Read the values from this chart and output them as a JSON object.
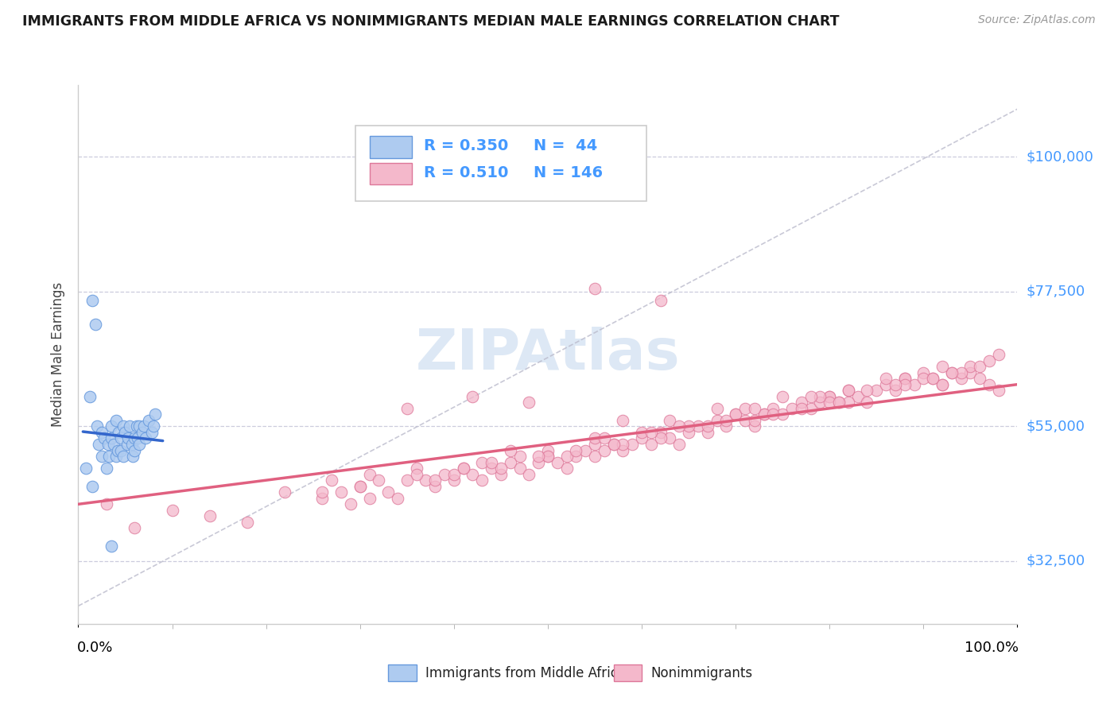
{
  "title": "IMMIGRANTS FROM MIDDLE AFRICA VS NONIMMIGRANTS MEDIAN MALE EARNINGS CORRELATION CHART",
  "source": "Source: ZipAtlas.com",
  "ylabel": "Median Male Earnings",
  "xlim": [
    0.0,
    1.0
  ],
  "ylim": [
    22000,
    112000
  ],
  "yticks": [
    32500,
    55000,
    77500,
    100000
  ],
  "ytick_labels": [
    "$32,500",
    "$55,000",
    "$77,500",
    "$100,000"
  ],
  "xtick_labels": [
    "0.0%",
    "100.0%"
  ],
  "blue_R": 0.35,
  "blue_N": 44,
  "pink_R": 0.51,
  "pink_N": 146,
  "blue_fill": "#aecbf0",
  "blue_edge": "#6699dd",
  "blue_line": "#3366cc",
  "pink_fill": "#f4b8cb",
  "pink_edge": "#dd7799",
  "pink_line": "#e06080",
  "dash_color": "#bbbbcc",
  "bg_color": "#ffffff",
  "grid_color": "#ccccdd",
  "title_color": "#1a1a1a",
  "ylabel_color": "#444444",
  "ytick_color": "#4499ff",
  "xtick_color": "#000000",
  "watermark_color": "#dde8f5",
  "blue_scatter_x": [
    0.008,
    0.012,
    0.015,
    0.018,
    0.02,
    0.022,
    0.025,
    0.025,
    0.028,
    0.03,
    0.032,
    0.033,
    0.035,
    0.035,
    0.038,
    0.04,
    0.04,
    0.042,
    0.043,
    0.045,
    0.045,
    0.048,
    0.048,
    0.05,
    0.052,
    0.053,
    0.055,
    0.057,
    0.058,
    0.06,
    0.06,
    0.062,
    0.063,
    0.065,
    0.065,
    0.068,
    0.07,
    0.072,
    0.075,
    0.078,
    0.08,
    0.082,
    0.015,
    0.035
  ],
  "blue_scatter_y": [
    48000,
    60000,
    76000,
    72000,
    55000,
    52000,
    54000,
    50000,
    53000,
    48000,
    52000,
    50000,
    55000,
    53000,
    52000,
    56000,
    50000,
    51000,
    54000,
    53000,
    51000,
    55000,
    50000,
    54000,
    52000,
    53000,
    55000,
    52000,
    50000,
    53000,
    51000,
    55000,
    53000,
    55000,
    52000,
    54000,
    55000,
    53000,
    56000,
    54000,
    55000,
    57000,
    45000,
    35000
  ],
  "pink_scatter_x": [
    0.03,
    0.06,
    0.1,
    0.14,
    0.18,
    0.22,
    0.26,
    0.27,
    0.28,
    0.29,
    0.3,
    0.31,
    0.31,
    0.32,
    0.33,
    0.34,
    0.35,
    0.36,
    0.37,
    0.38,
    0.39,
    0.4,
    0.41,
    0.42,
    0.43,
    0.44,
    0.45,
    0.46,
    0.47,
    0.48,
    0.49,
    0.5,
    0.51,
    0.52,
    0.53,
    0.54,
    0.55,
    0.55,
    0.56,
    0.57,
    0.58,
    0.59,
    0.6,
    0.61,
    0.62,
    0.63,
    0.64,
    0.65,
    0.66,
    0.67,
    0.68,
    0.69,
    0.7,
    0.71,
    0.72,
    0.73,
    0.74,
    0.75,
    0.76,
    0.77,
    0.78,
    0.79,
    0.8,
    0.81,
    0.82,
    0.83,
    0.84,
    0.85,
    0.86,
    0.87,
    0.88,
    0.89,
    0.9,
    0.91,
    0.92,
    0.93,
    0.94,
    0.95,
    0.96,
    0.97,
    0.98,
    0.55,
    0.62,
    0.35,
    0.42,
    0.48,
    0.58,
    0.68,
    0.75,
    0.82,
    0.88,
    0.26,
    0.3,
    0.36,
    0.43,
    0.5,
    0.6,
    0.7,
    0.8,
    0.9,
    0.95,
    0.38,
    0.45,
    0.52,
    0.62,
    0.72,
    0.82,
    0.92,
    0.4,
    0.5,
    0.58,
    0.65,
    0.73,
    0.8,
    0.88,
    0.94,
    0.44,
    0.53,
    0.61,
    0.69,
    0.77,
    0.84,
    0.91,
    0.96,
    0.47,
    0.57,
    0.67,
    0.74,
    0.81,
    0.87,
    0.93,
    0.97,
    0.41,
    0.46,
    0.55,
    0.63,
    0.71,
    0.79,
    0.86,
    0.92,
    0.98,
    0.49,
    0.56,
    0.64,
    0.72,
    0.78
  ],
  "pink_scatter_y": [
    42000,
    38000,
    41000,
    40000,
    39000,
    44000,
    43000,
    46000,
    44000,
    42000,
    45000,
    43000,
    47000,
    46000,
    44000,
    43000,
    46000,
    48000,
    46000,
    45000,
    47000,
    46000,
    48000,
    47000,
    46000,
    48000,
    47000,
    49000,
    48000,
    47000,
    49000,
    50000,
    49000,
    48000,
    50000,
    51000,
    52000,
    50000,
    51000,
    52000,
    51000,
    52000,
    53000,
    52000,
    54000,
    53000,
    52000,
    54000,
    55000,
    54000,
    56000,
    55000,
    57000,
    56000,
    55000,
    57000,
    58000,
    57000,
    58000,
    59000,
    58000,
    59000,
    60000,
    59000,
    61000,
    60000,
    59000,
    61000,
    62000,
    61000,
    63000,
    62000,
    64000,
    63000,
    62000,
    64000,
    63000,
    64000,
    63000,
    62000,
    61000,
    78000,
    76000,
    58000,
    60000,
    59000,
    56000,
    58000,
    60000,
    61000,
    63000,
    44000,
    45000,
    47000,
    49000,
    51000,
    54000,
    57000,
    60000,
    63000,
    65000,
    46000,
    48000,
    50000,
    53000,
    56000,
    59000,
    62000,
    47000,
    50000,
    52000,
    55000,
    57000,
    59000,
    62000,
    64000,
    49000,
    51000,
    54000,
    56000,
    58000,
    61000,
    63000,
    65000,
    50000,
    52000,
    55000,
    57000,
    59000,
    62000,
    64000,
    66000,
    48000,
    51000,
    53000,
    56000,
    58000,
    60000,
    63000,
    65000,
    67000,
    50000,
    53000,
    55000,
    58000,
    60000
  ]
}
